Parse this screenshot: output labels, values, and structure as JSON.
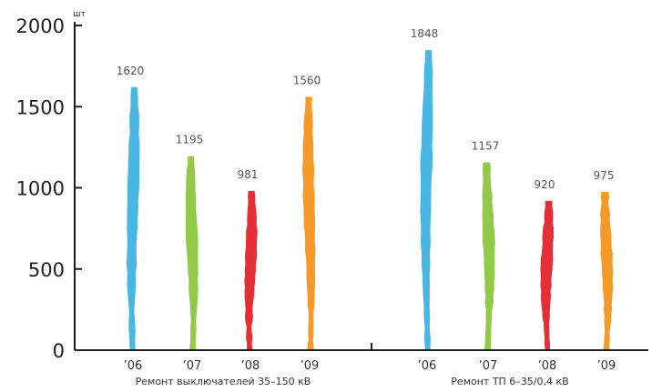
{
  "chart_data": {
    "type": "bar",
    "unit": "шт",
    "ylim": [
      0,
      2000
    ],
    "yticks": [
      0,
      500,
      1000,
      1500,
      2000
    ],
    "grid": false,
    "groups": [
      {
        "name": "Ремонт выключателей 35–150 кВ",
        "categories": [
          "’06",
          "’07",
          "’08",
          "’09"
        ],
        "values": [
          1620,
          1195,
          981,
          1560
        ]
      },
      {
        "name": "Ремонт ТП 6–35/0,4 кВ",
        "categories": [
          "’06",
          "’07",
          "’08",
          "’09"
        ],
        "values": [
          1848,
          1157,
          920,
          975
        ]
      }
    ],
    "colors": [
      "#3fb3e2",
      "#8dc63f",
      "#e3242b",
      "#f7941d"
    ]
  }
}
